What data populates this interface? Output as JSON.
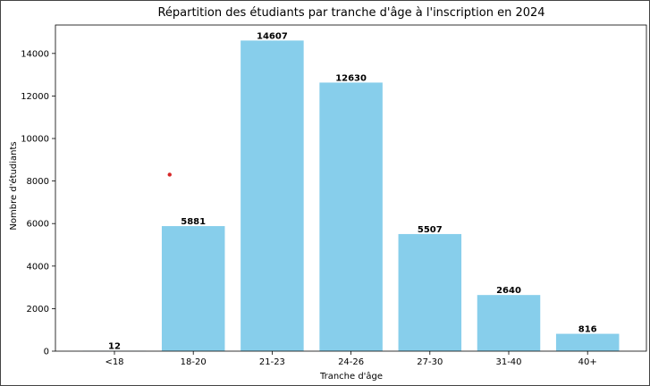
{
  "chart_data": {
    "type": "bar",
    "title": "Répartition des étudiants par tranche d'âge à l'inscription en 2024",
    "xlabel": "Tranche d'âge",
    "ylabel": "Nombre d'étudiants",
    "categories": [
      "<18",
      "18-20",
      "21-23",
      "24-26",
      "27-30",
      "31-40",
      "40+"
    ],
    "values": [
      12,
      5881,
      14607,
      12630,
      5507,
      2640,
      816
    ],
    "data_labels": [
      "12",
      "5881",
      "14607",
      "12630",
      "5507",
      "2640",
      "816"
    ],
    "ylim": [
      0,
      15337
    ],
    "yticks": [
      0,
      2000,
      4000,
      6000,
      8000,
      10000,
      12000,
      14000
    ],
    "ytick_labels": [
      "0",
      "2000",
      "4000",
      "6000",
      "8000",
      "10000",
      "12000",
      "14000"
    ],
    "grid": false,
    "bar_color": "#87ceeb",
    "marker": {
      "category_position": 0.7,
      "value": 8300,
      "color": "#d62728"
    }
  }
}
